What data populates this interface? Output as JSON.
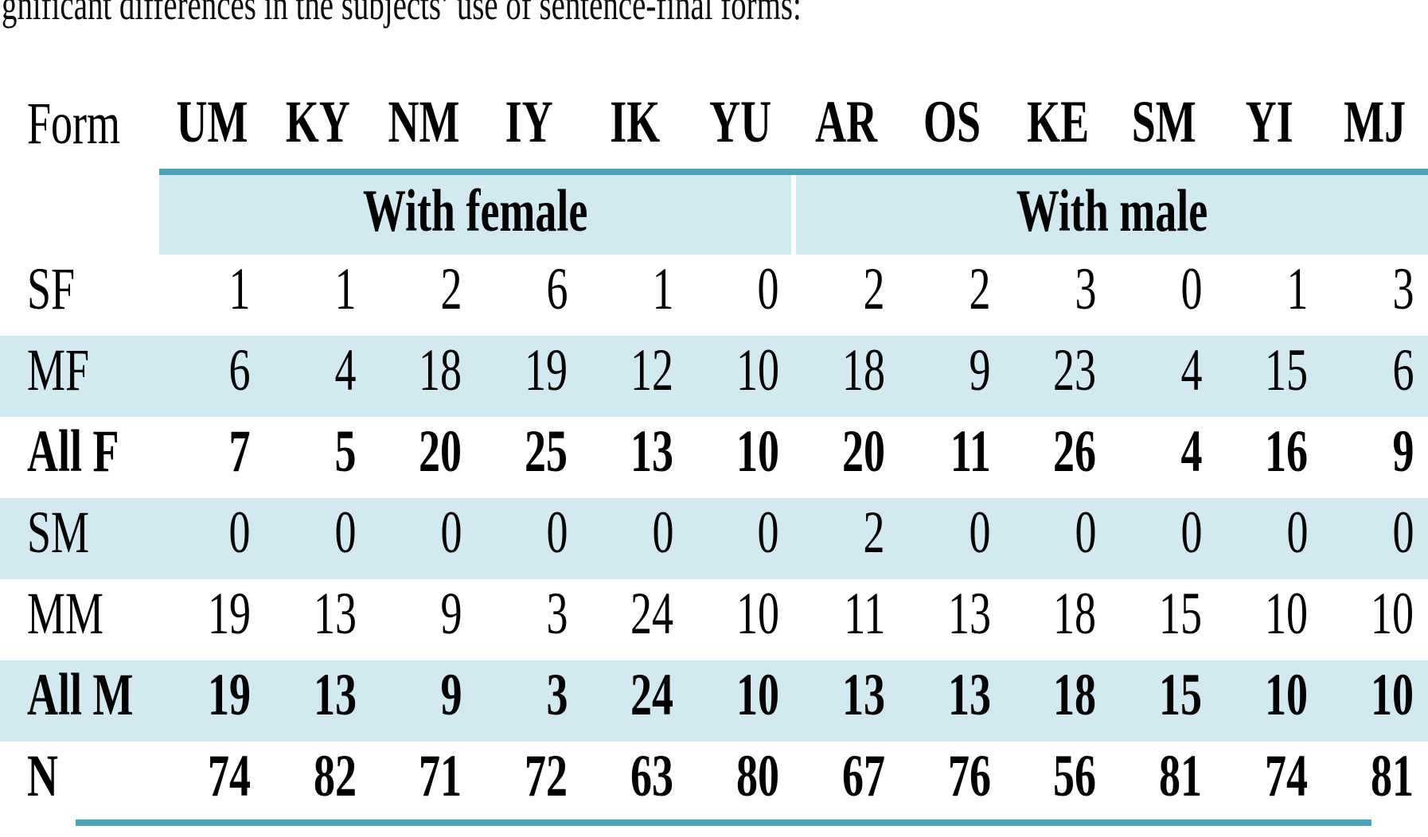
{
  "page": {
    "intro_text": "gnificant differences in the subjects’ use of sentence-final forms:"
  },
  "table": {
    "form_header": "Form",
    "subject_codes": [
      "UM",
      "KY",
      "NM",
      "IY",
      "IK",
      "YU",
      "AR",
      "OS",
      "KE",
      "SM",
      "YI",
      "MJ"
    ],
    "group_headers": {
      "female": "With female",
      "male": "With male"
    },
    "rows": [
      {
        "label": "SF",
        "bold": false,
        "shaded": false,
        "values": [
          1,
          1,
          2,
          6,
          1,
          0,
          2,
          2,
          3,
          0,
          1,
          3
        ]
      },
      {
        "label": "MF",
        "bold": false,
        "shaded": true,
        "values": [
          6,
          4,
          18,
          19,
          12,
          10,
          18,
          9,
          23,
          4,
          15,
          6
        ]
      },
      {
        "label": "All F",
        "bold": true,
        "shaded": false,
        "values": [
          7,
          5,
          20,
          25,
          13,
          10,
          20,
          11,
          26,
          4,
          16,
          9
        ]
      },
      {
        "label": "SM",
        "bold": false,
        "shaded": true,
        "values": [
          0,
          0,
          0,
          0,
          0,
          0,
          2,
          0,
          0,
          0,
          0,
          0
        ]
      },
      {
        "label": "MM",
        "bold": false,
        "shaded": false,
        "values": [
          19,
          13,
          9,
          3,
          24,
          10,
          11,
          13,
          18,
          15,
          10,
          10
        ]
      },
      {
        "label": "All M",
        "bold": true,
        "shaded": true,
        "values": [
          19,
          13,
          9,
          3,
          24,
          10,
          13,
          13,
          18,
          15,
          10,
          10
        ]
      },
      {
        "label": "N",
        "bold": true,
        "shaded": false,
        "values": [
          74,
          82,
          71,
          72,
          63,
          80,
          67,
          76,
          56,
          81,
          74,
          81
        ]
      }
    ],
    "colors": {
      "shaded_row_bg": "#d3e9f1",
      "rule_teal": "#4ba4b8",
      "text": "#000000"
    }
  },
  "chart_data": {
    "type": "table",
    "title": "Use of sentence-final forms per subject",
    "columns": [
      "Form",
      "UM",
      "KY",
      "NM",
      "IY",
      "IK",
      "YU",
      "AR",
      "OS",
      "KE",
      "SM",
      "YI",
      "MJ"
    ],
    "column_groups": [
      {
        "label": "With female",
        "columns": [
          "UM",
          "KY",
          "NM",
          "IY",
          "IK",
          "YU"
        ]
      },
      {
        "label": "With male",
        "columns": [
          "AR",
          "OS",
          "KE",
          "SM",
          "YI",
          "MJ"
        ]
      }
    ],
    "rows": [
      [
        "SF",
        1,
        1,
        2,
        6,
        1,
        0,
        2,
        2,
        3,
        0,
        1,
        3
      ],
      [
        "MF",
        6,
        4,
        18,
        19,
        12,
        10,
        18,
        9,
        23,
        4,
        15,
        6
      ],
      [
        "All F",
        7,
        5,
        20,
        25,
        13,
        10,
        20,
        11,
        26,
        4,
        16,
        9
      ],
      [
        "SM",
        0,
        0,
        0,
        0,
        0,
        0,
        2,
        0,
        0,
        0,
        0,
        0
      ],
      [
        "MM",
        19,
        13,
        9,
        3,
        24,
        10,
        11,
        13,
        18,
        15,
        10,
        10
      ],
      [
        "All M",
        19,
        13,
        9,
        3,
        24,
        10,
        13,
        13,
        18,
        15,
        10,
        10
      ],
      [
        "N",
        74,
        82,
        71,
        72,
        63,
        80,
        67,
        76,
        56,
        81,
        74,
        81
      ]
    ]
  }
}
